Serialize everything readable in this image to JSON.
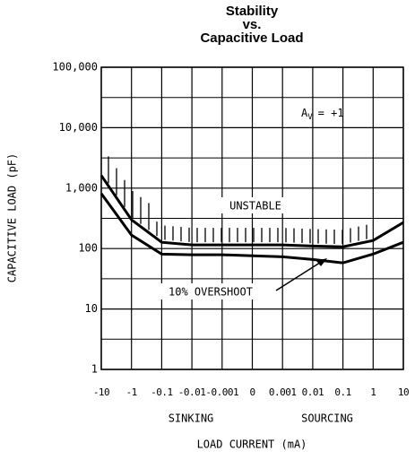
{
  "chart_data": {
    "type": "line",
    "title": [
      "Stability",
      "vs.",
      "Capacitive Load"
    ],
    "x_label": "LOAD CURRENT (mA)",
    "y_label": "CAPACITIVE LOAD (pF)",
    "x_groups": [
      "SINKING",
      "SOURCING"
    ],
    "gain_label": {
      "symbol": "A",
      "subscript": "V",
      "text": "= +1"
    },
    "categories": [
      "-10",
      "-1",
      "-0.1",
      "-0.01",
      "-0.001",
      "0",
      "0.001",
      "0.01",
      "0.1",
      "1",
      "10"
    ],
    "series": [
      {
        "name": "UNSTABLE",
        "color": "#000000",
        "values": [
          1620,
          300,
          127,
          115,
          115,
          115,
          115,
          110,
          107,
          136,
          270
        ]
      },
      {
        "name": "10% OVERSHOOT",
        "color": "#000000",
        "values": [
          814,
          167,
          81,
          79,
          79,
          76,
          73,
          66,
          58,
          81,
          127
        ]
      }
    ],
    "log_scale": true,
    "ylim": [
      1,
      100000
    ],
    "yticks": [
      1,
      10,
      100,
      {
        "value": 1000,
        "label": "1,000"
      },
      {
        "value": 10000,
        "label": "10,000"
      },
      {
        "value": 100000,
        "label": "100,000"
      }
    ],
    "grid": true
  }
}
